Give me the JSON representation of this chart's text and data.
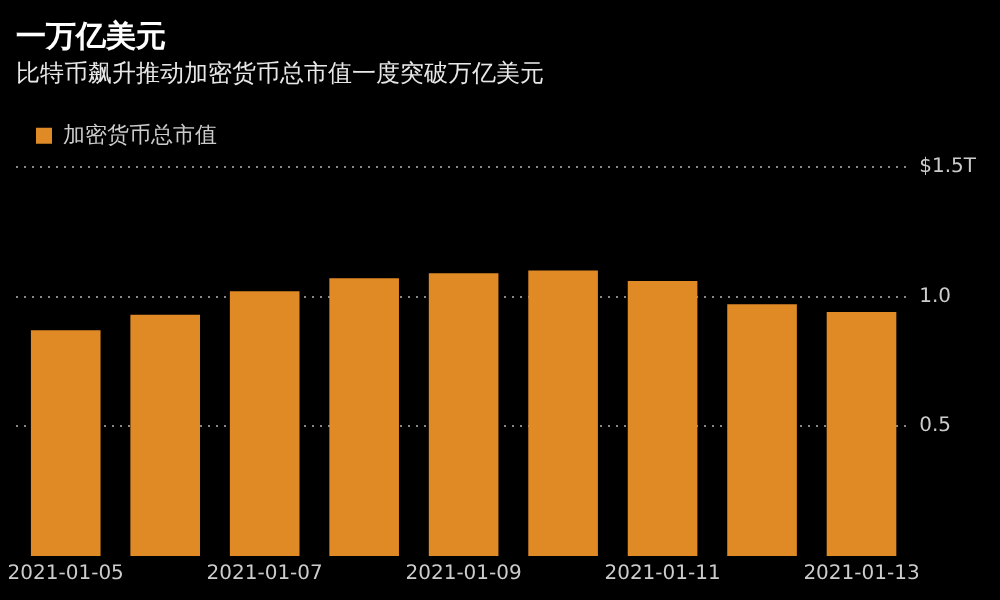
{
  "chart_data": {
    "type": "bar",
    "title": "一万亿美元",
    "subtitle": "比特币飙升推动加密货币总市值一度突破万亿美元",
    "categories": [
      "2021-01-05",
      null,
      "2021-01-07",
      null,
      "2021-01-09",
      null,
      "2021-01-11",
      null,
      "2021-01-13"
    ],
    "series": [
      {
        "name": "加密货币总市值",
        "color": "#e08a26",
        "values": [
          0.87,
          0.93,
          1.02,
          1.07,
          1.09,
          1.1,
          1.06,
          0.97,
          0.94
        ]
      }
    ],
    "ylim": [
      0,
      1.5
    ],
    "yticks": [
      {
        "value": 0.5,
        "label": "0.5"
      },
      {
        "value": 1.0,
        "label": "1.0"
      },
      {
        "value": 1.5,
        "label": "$1.5T"
      }
    ],
    "grid": "y",
    "legend": "top left"
  }
}
